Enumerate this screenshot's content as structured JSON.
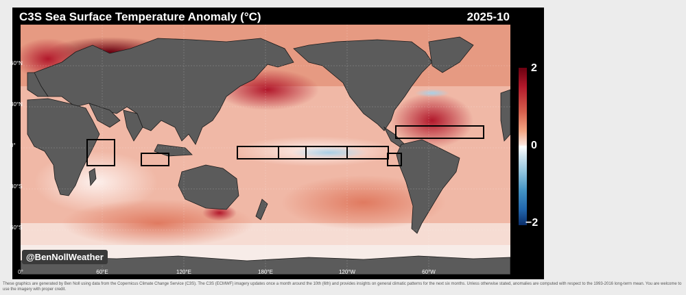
{
  "header": {
    "title": "C3S Sea Surface Temperature Anomaly (°C)",
    "date": "2025-10"
  },
  "map": {
    "lat_labels": [
      "60°N",
      "30°N",
      "0°",
      "30°S",
      "60°S"
    ],
    "lon_labels": [
      "0°",
      "60°E",
      "120°E",
      "180°E",
      "120°W",
      "60°W"
    ],
    "watermark": "@BenNollWeather"
  },
  "colorbar": {
    "max_label": "2",
    "mid_label": "0",
    "min_label": "−2"
  },
  "footer": {
    "text": "These graphics are generated by Ben Noll using data from the Copernicus Climate Change Service (C3S). The C3S (ECMWF) imagery updates once a month around the 10th (6th) and provides insights on general climatic patterns for the next six months. Unless otherwise stated, anomalies are computed with respect to the 1993-2016 long-term mean. You are welcome to use the imagery with proper credit."
  },
  "colors": {
    "warm": "#d6604d",
    "cool": "#4393c3",
    "land": "#5b5b5b"
  }
}
